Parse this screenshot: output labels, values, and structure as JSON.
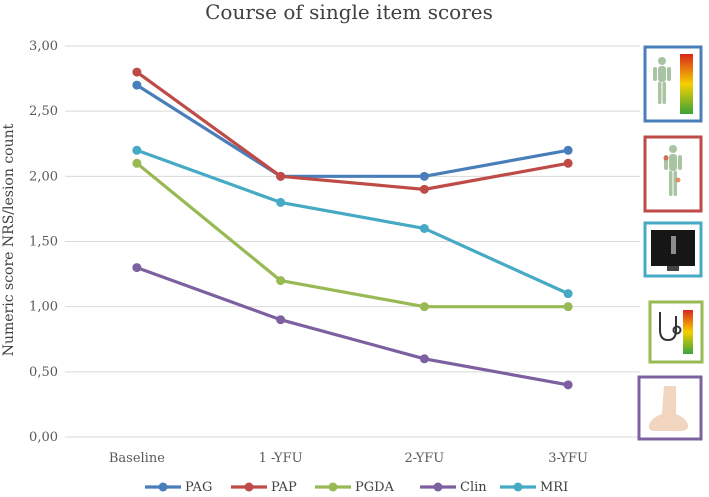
{
  "chart_data": {
    "type": "line",
    "title": "Course of single item scores",
    "xlabel": "",
    "ylabel": "Numeric score NRS/lesion count",
    "categories": [
      "Baseline",
      "1 -YFU",
      "2-YFU",
      "3-YFU"
    ],
    "ylim": [
      0,
      3
    ],
    "yticks": [
      "0,00",
      "0,50",
      "1,00",
      "1,50",
      "2,00",
      "2,50",
      "3,00"
    ],
    "grid": true,
    "legend_position": "bottom",
    "series": [
      {
        "name": "PAG",
        "color": "#4a7ebb",
        "values": [
          2.7,
          2.0,
          2.0,
          2.2
        ]
      },
      {
        "name": "PAP",
        "color": "#be4b48",
        "values": [
          2.8,
          2.0,
          1.9,
          2.1
        ]
      },
      {
        "name": "PGDA",
        "color": "#98b954",
        "values": [
          2.1,
          1.2,
          1.0,
          1.0
        ]
      },
      {
        "name": "Clin",
        "color": "#7d60a0",
        "values": [
          1.3,
          0.9,
          0.6,
          0.4
        ]
      },
      {
        "name": "MRI",
        "color": "#46aac5",
        "values": [
          2.2,
          1.8,
          1.6,
          1.1
        ]
      }
    ]
  },
  "icons": [
    {
      "name": "body-color-scale-icon",
      "series": "PAG",
      "color": "#4a7ebb"
    },
    {
      "name": "body-pain-points-icon",
      "series": "PAP",
      "color": "#be4b48"
    },
    {
      "name": "mri-monitor-icon",
      "series": "MRI",
      "color": "#46aac5"
    },
    {
      "name": "stethoscope-scale-icon",
      "series": "PGDA",
      "color": "#98b954"
    },
    {
      "name": "foot-icon",
      "series": "Clin",
      "color": "#7d60a0"
    }
  ]
}
